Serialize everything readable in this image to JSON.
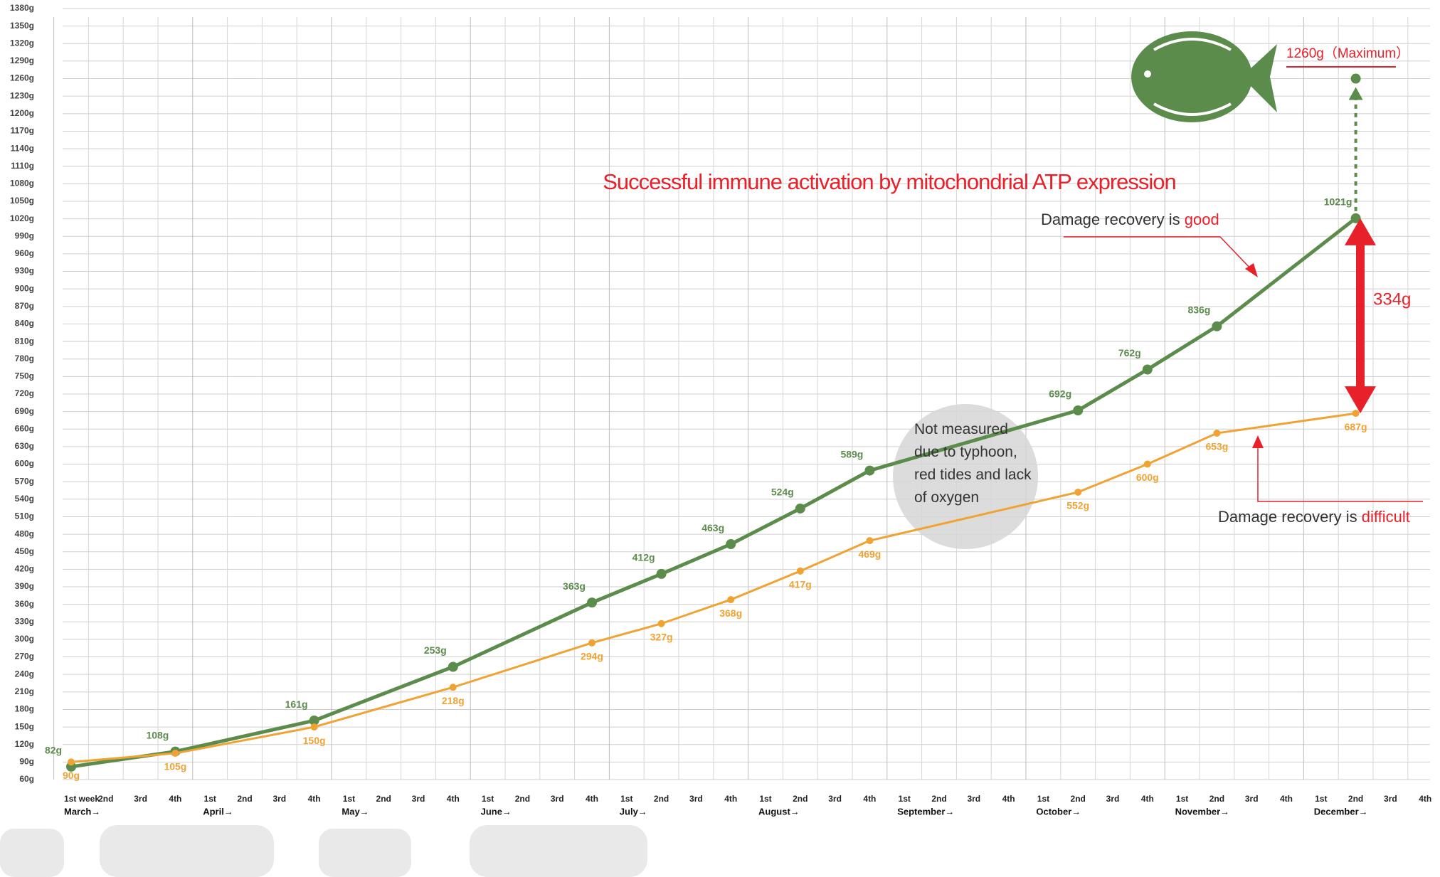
{
  "chart_data": {
    "type": "line",
    "title": "Successful immune activation by mitochondrial ATP expression",
    "categories": [
      "1st week",
      "2nd",
      "3rd",
      "4th",
      "1st",
      "2nd",
      "3rd",
      "4th",
      "1st",
      "2nd",
      "3rd",
      "4th",
      "1st",
      "2nd",
      "3rd",
      "4th",
      "1st",
      "2nd",
      "3rd",
      "4th",
      "1st",
      "2nd",
      "3rd",
      "4th",
      "1st",
      "2nd",
      "3rd",
      "4th",
      "1st",
      "2nd",
      "3rd",
      "4th",
      "1st",
      "2nd",
      "3rd",
      "4th",
      "1st",
      "2nd",
      "3rd",
      "4th"
    ],
    "months": [
      "March→",
      "April→",
      "May→",
      "June→",
      "July→",
      "August→",
      "September→",
      "October→",
      "November→",
      "December→"
    ],
    "series": [
      {
        "color": "#5b8c4b",
        "values": [
          82,
          null,
          null,
          108,
          null,
          null,
          null,
          161,
          null,
          null,
          null,
          253,
          null,
          null,
          null,
          363,
          null,
          412,
          null,
          463,
          null,
          524,
          null,
          589,
          null,
          null,
          null,
          null,
          null,
          692,
          null,
          762,
          null,
          836,
          null,
          null,
          null,
          1021,
          null,
          null
        ],
        "value_labels": [
          "82g",
          null,
          null,
          "108g",
          null,
          null,
          null,
          "161g",
          null,
          null,
          null,
          "253g",
          null,
          null,
          null,
          "363g",
          null,
          "412g",
          null,
          "463g",
          null,
          "524g",
          null,
          "589g",
          null,
          null,
          null,
          null,
          null,
          "692g",
          null,
          "762g",
          null,
          "836g",
          null,
          null,
          null,
          "1021g",
          null,
          null
        ]
      },
      {
        "color": "#f0a232",
        "values": [
          90,
          null,
          null,
          105,
          null,
          null,
          null,
          150,
          null,
          null,
          null,
          218,
          null,
          null,
          null,
          294,
          null,
          327,
          null,
          368,
          null,
          417,
          null,
          469,
          null,
          null,
          null,
          null,
          null,
          552,
          null,
          600,
          null,
          653,
          null,
          null,
          null,
          687,
          null,
          null
        ],
        "value_labels": [
          "90g",
          null,
          null,
          "105g",
          null,
          null,
          null,
          "150g",
          null,
          null,
          null,
          "218g",
          null,
          null,
          null,
          "294g",
          null,
          "327g",
          null,
          "368g",
          null,
          "417g",
          null,
          "469g",
          null,
          null,
          null,
          null,
          null,
          "552g",
          null,
          "600g",
          null,
          "653g",
          null,
          null,
          null,
          "687g",
          null,
          null
        ]
      }
    ],
    "ylim": [
      60,
      1380
    ],
    "yticks": [
      {
        "value": 60,
        "label": "60g"
      },
      {
        "value": 90,
        "label": "90g"
      },
      {
        "value": 120,
        "label": "120g"
      },
      {
        "value": 150,
        "label": "150g"
      },
      {
        "value": 180,
        "label": "180g"
      },
      {
        "value": 210,
        "label": "210g"
      },
      {
        "value": 240,
        "label": "240g"
      },
      {
        "value": 270,
        "label": "270g"
      },
      {
        "value": 300,
        "label": "300g"
      },
      {
        "value": 330,
        "label": "330g"
      },
      {
        "value": 360,
        "label": "360g"
      },
      {
        "value": 390,
        "label": "390g"
      },
      {
        "value": 420,
        "label": "420g"
      },
      {
        "value": 450,
        "label": "450g"
      },
      {
        "value": 480,
        "label": "480g"
      },
      {
        "value": 510,
        "label": "510g"
      },
      {
        "value": 540,
        "label": "540g"
      },
      {
        "value": 570,
        "label": "570g"
      },
      {
        "value": 600,
        "label": "600g"
      },
      {
        "value": 630,
        "label": "630g"
      },
      {
        "value": 660,
        "label": "660g"
      },
      {
        "value": 690,
        "label": "690g"
      },
      {
        "value": 720,
        "label": "720g"
      },
      {
        "value": 750,
        "label": "750g"
      },
      {
        "value": 780,
        "label": "780g"
      },
      {
        "value": 810,
        "label": "810g"
      },
      {
        "value": 840,
        "label": "840g"
      },
      {
        "value": 870,
        "label": "870g"
      },
      {
        "value": 900,
        "label": "900g"
      },
      {
        "value": 930,
        "label": "930g"
      },
      {
        "value": 960,
        "label": "960g"
      },
      {
        "value": 990,
        "label": "990g"
      },
      {
        "value": 1020,
        "label": "1020g"
      },
      {
        "value": 1050,
        "label": "1050g"
      },
      {
        "value": 1080,
        "label": "1080g"
      },
      {
        "value": 1110,
        "label": "1110g"
      },
      {
        "value": 1140,
        "label": "1140g"
      },
      {
        "value": 1170,
        "label": "1170g"
      },
      {
        "value": 1200,
        "label": "1200g"
      },
      {
        "value": 1230,
        "label": "1230g"
      },
      {
        "value": 1260,
        "label": "1260g"
      },
      {
        "value": 1290,
        "label": "1290g"
      },
      {
        "value": 1320,
        "label": "1320g"
      },
      {
        "value": 1350,
        "label": "1350g"
      },
      {
        "value": 1380,
        "label": "1380g"
      }
    ],
    "grid": true,
    "maximum": {
      "value": 1260,
      "label": "1260g（Maximum）"
    },
    "difference": {
      "value": 334,
      "label": "334g"
    },
    "good_note": {
      "text": "Damage recovery is ",
      "highlight": "good"
    },
    "difficult_note": {
      "text": "Damage recovery is ",
      "highlight": "difficult"
    },
    "gap_note": "Not measured due to typhoon, red tides and lack of oxygen"
  }
}
